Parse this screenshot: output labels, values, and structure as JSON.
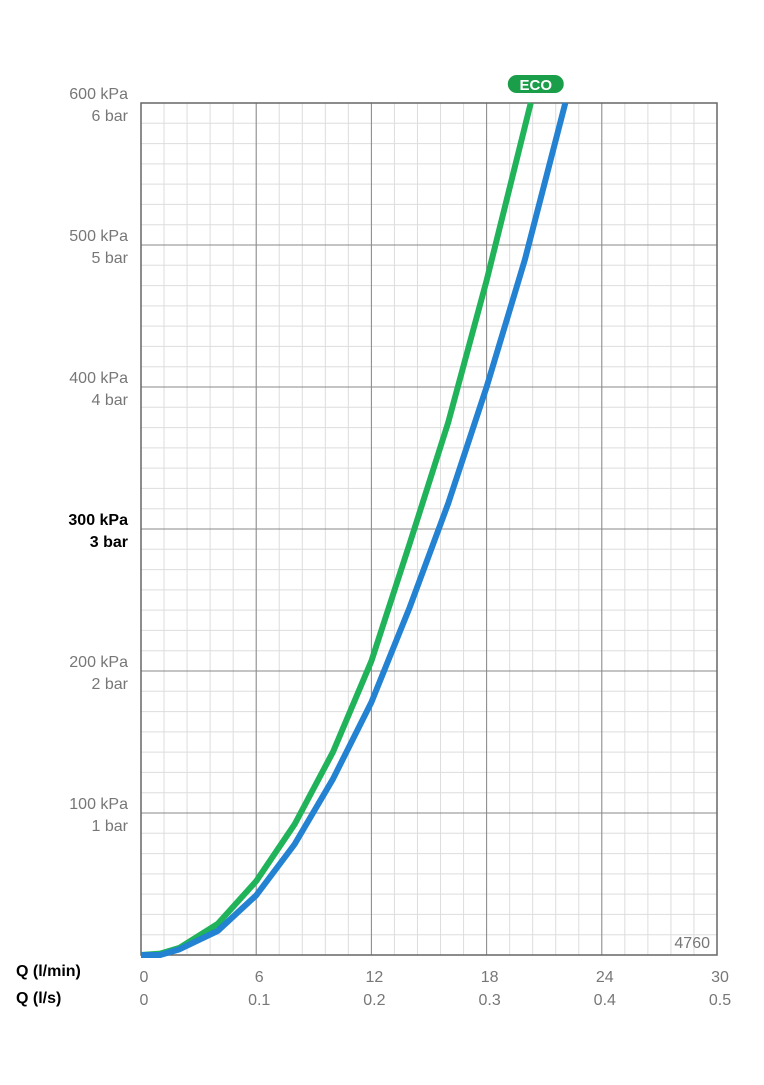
{
  "chart_data": {
    "type": "line",
    "xlabel": "Q (l/min)",
    "x2label": "Q (l/s)",
    "xlim": [
      0,
      30
    ],
    "xticks": [
      0,
      6,
      12,
      18,
      24,
      30
    ],
    "x2ticks": [
      {
        "value": 0,
        "label": "0"
      },
      {
        "value": 6,
        "label": "0.1"
      },
      {
        "value": 12,
        "label": "0.2"
      },
      {
        "value": 18,
        "label": "0.3"
      },
      {
        "value": 24,
        "label": "0.4"
      },
      {
        "value": 30,
        "label": "0.5"
      }
    ],
    "ylim": [
      0,
      600
    ],
    "yticks": [
      {
        "value": 100,
        "label": "100 kPa"
      },
      {
        "value": 200,
        "label": "200 kPa"
      },
      {
        "value": 300,
        "label": "300 kPa"
      },
      {
        "value": 400,
        "label": "400 kPa"
      },
      {
        "value": 500,
        "label": "500 kPa"
      },
      {
        "value": 600,
        "label": "600 kPa"
      }
    ],
    "yticks_bar": [
      {
        "value": 100,
        "label": "1 bar"
      },
      {
        "value": 200,
        "label": "2 bar"
      },
      {
        "value": 300,
        "label": "3 bar"
      },
      {
        "value": 400,
        "label": "4 bar"
      },
      {
        "value": 500,
        "label": "5 bar"
      },
      {
        "value": 600,
        "label": "6 bar"
      }
    ],
    "highlight_ytick": 300,
    "grid": true,
    "series": [
      {
        "color": "#20b35a",
        "x": [
          0,
          1,
          2,
          4,
          6,
          8,
          10,
          12,
          14,
          16,
          18,
          20.3
        ],
        "values": [
          0,
          1,
          5,
          22,
          52,
          92,
          143,
          207,
          290,
          375,
          475,
          600
        ]
      },
      {
        "color": "#2382d2",
        "x": [
          0,
          1,
          2,
          4,
          6,
          8,
          10,
          12,
          14,
          16,
          18,
          20,
          22.1
        ],
        "values": [
          0,
          0,
          4,
          17,
          42,
          78,
          124,
          178,
          245,
          318,
          400,
          490,
          600
        ]
      }
    ],
    "annotation": "ECO",
    "code": "4760"
  }
}
